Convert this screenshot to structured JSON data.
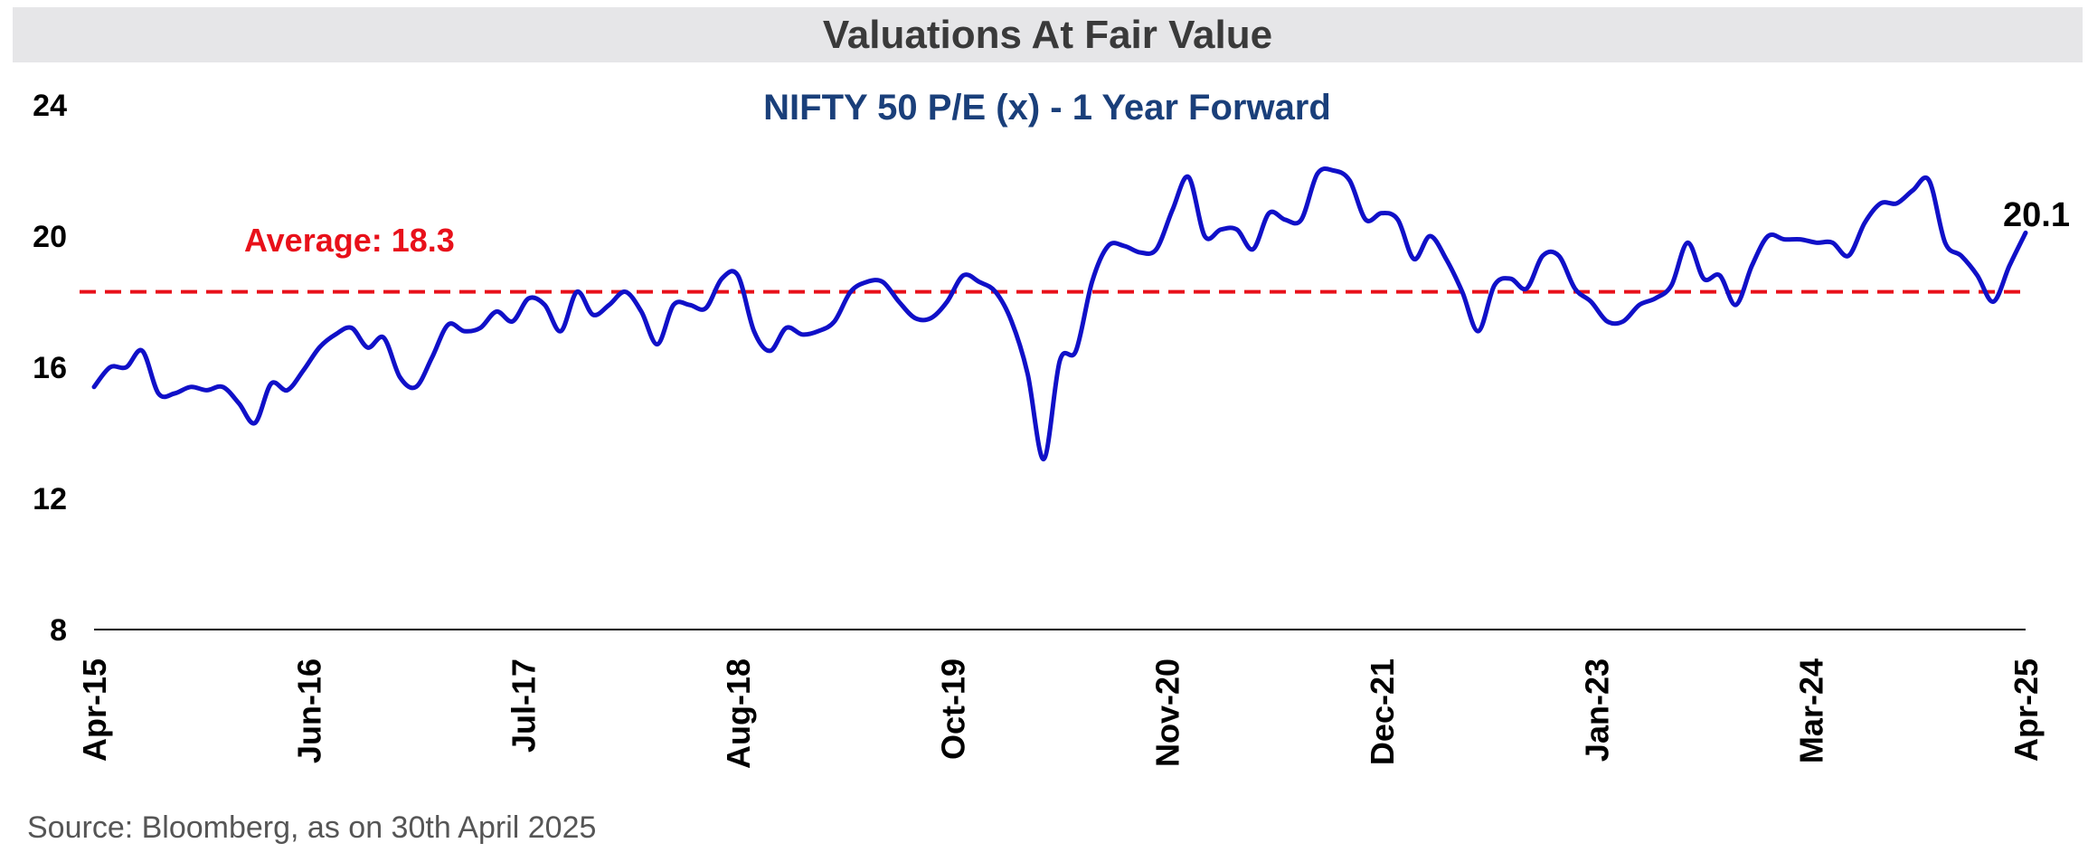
{
  "header": {
    "title": "Valuations At Fair Value"
  },
  "footer": {
    "source": "Source: Bloomberg, as on 30th April 2025"
  },
  "chart_data": {
    "type": "line",
    "title": "NIFTY 50 P/E (x) - 1 Year Forward",
    "xlabel": "",
    "ylabel": "",
    "ylim": [
      8,
      24
    ],
    "yticks": [
      8,
      12,
      16,
      20,
      24
    ],
    "xticks": [
      "Apr-15",
      "Jun-16",
      "Jul-17",
      "Aug-18",
      "Oct-19",
      "Nov-20",
      "Dec-21",
      "Jan-23",
      "Mar-24",
      "Apr-25"
    ],
    "grid": false,
    "colors": {
      "series": "#1010c8",
      "average": "#e8101a",
      "title": "#1a3f7a",
      "axis": "#000000"
    },
    "average": {
      "value": 18.3,
      "label": "Average: 18.3"
    },
    "last_value_label": "20.1",
    "series": [
      {
        "x": [
          "Apr-15",
          "May-15",
          "Jun-15",
          "Jul-15",
          "Aug-15",
          "Sep-15",
          "Oct-15",
          "Nov-15",
          "Dec-15",
          "Jan-16",
          "Feb-16",
          "Mar-16",
          "Apr-16",
          "May-16",
          "Jun-16",
          "Jul-16",
          "Aug-16",
          "Sep-16",
          "Oct-16",
          "Nov-16",
          "Dec-16",
          "Jan-17",
          "Feb-17",
          "Mar-17",
          "Apr-17",
          "May-17",
          "Jun-17",
          "Jul-17",
          "Aug-17",
          "Sep-17",
          "Oct-17",
          "Nov-17",
          "Dec-17",
          "Jan-18",
          "Feb-18",
          "Mar-18",
          "Apr-18",
          "May-18",
          "Jun-18",
          "Jul-18",
          "Aug-18",
          "Sep-18",
          "Oct-18",
          "Nov-18",
          "Dec-18",
          "Jan-19",
          "Feb-19",
          "Mar-19",
          "Apr-19",
          "May-19",
          "Jun-19",
          "Jul-19",
          "Aug-19",
          "Sep-19",
          "Oct-19",
          "Nov-19",
          "Dec-19",
          "Jan-20",
          "Feb-20",
          "Mar-20",
          "Apr-20",
          "May-20",
          "Jun-20",
          "Jul-20",
          "Aug-20",
          "Sep-20",
          "Oct-20",
          "Nov-20",
          "Dec-20",
          "Jan-21",
          "Feb-21",
          "Mar-21",
          "Apr-21",
          "May-21",
          "Jun-21",
          "Jul-21",
          "Aug-21",
          "Sep-21",
          "Oct-21",
          "Nov-21",
          "Dec-21",
          "Jan-22",
          "Feb-22",
          "Mar-22",
          "Apr-22",
          "May-22",
          "Jun-22",
          "Jul-22",
          "Aug-22",
          "Sep-22",
          "Oct-22",
          "Nov-22",
          "Dec-22",
          "Jan-23",
          "Feb-23",
          "Mar-23",
          "Apr-23",
          "May-23",
          "Jun-23",
          "Jul-23",
          "Aug-23",
          "Sep-23",
          "Oct-23",
          "Nov-23",
          "Dec-23",
          "Jan-24",
          "Feb-24",
          "Mar-24",
          "Apr-24",
          "May-24",
          "Jun-24",
          "Jul-24",
          "Aug-24",
          "Sep-24",
          "Oct-24",
          "Nov-24",
          "Dec-24",
          "Jan-25",
          "Feb-25",
          "Mar-25",
          "Apr-25"
        ],
        "values": [
          15.4,
          16.0,
          16.0,
          16.5,
          15.2,
          15.2,
          15.4,
          15.3,
          15.4,
          14.9,
          14.3,
          15.5,
          15.3,
          15.9,
          16.6,
          17.0,
          17.2,
          16.6,
          16.9,
          15.7,
          15.4,
          16.3,
          17.3,
          17.1,
          17.2,
          17.7,
          17.4,
          18.1,
          17.9,
          17.1,
          18.3,
          17.6,
          17.9,
          18.3,
          17.7,
          16.7,
          17.9,
          17.9,
          17.8,
          18.7,
          18.8,
          17.1,
          16.5,
          17.2,
          17.0,
          17.1,
          17.4,
          18.3,
          18.6,
          18.6,
          18.0,
          17.5,
          17.5,
          18.0,
          18.8,
          18.6,
          18.3,
          17.4,
          15.8,
          13.2,
          16.2,
          16.5,
          18.6,
          19.7,
          19.7,
          19.5,
          19.6,
          20.8,
          21.8,
          20.0,
          20.2,
          20.2,
          19.6,
          20.7,
          20.5,
          20.5,
          21.9,
          22.0,
          21.7,
          20.5,
          20.7,
          20.5,
          19.3,
          20.0,
          19.3,
          18.3,
          17.1,
          18.5,
          18.7,
          18.4,
          19.4,
          19.4,
          18.4,
          18.0,
          17.4,
          17.4,
          17.9,
          18.1,
          18.5,
          19.8,
          18.7,
          18.8,
          17.9,
          19.1,
          20.0,
          19.9,
          19.9,
          19.8,
          19.8,
          19.4,
          20.4,
          21.0,
          21.0,
          21.4,
          21.7,
          19.8,
          19.4,
          18.8,
          18.0,
          19.1,
          20.1
        ]
      }
    ]
  }
}
